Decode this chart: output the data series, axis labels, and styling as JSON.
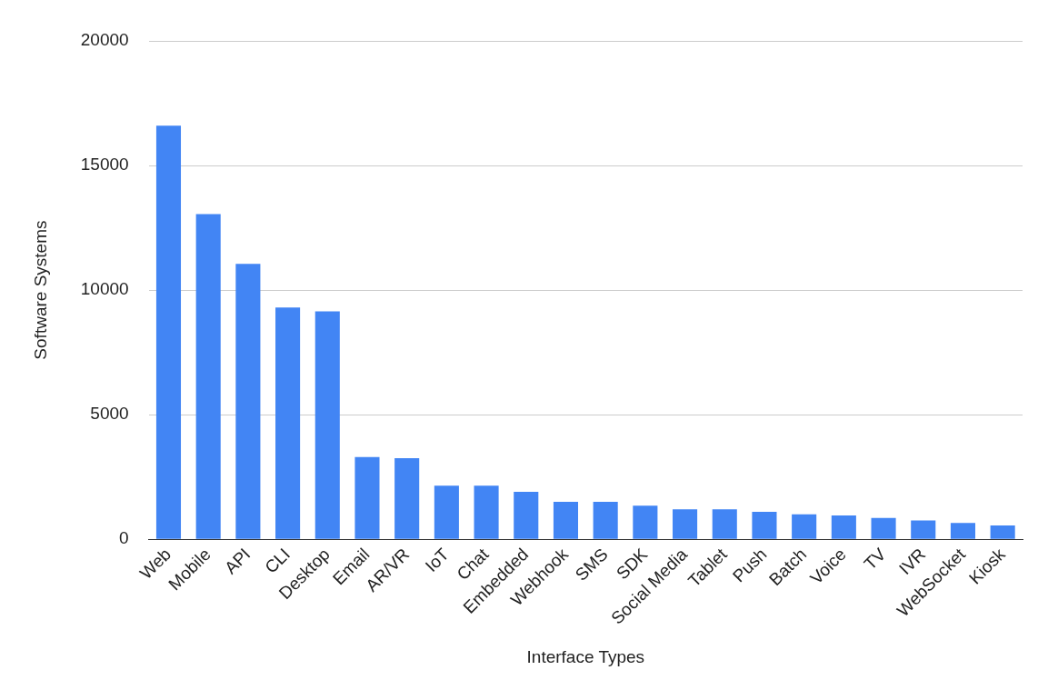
{
  "chart_data": {
    "type": "bar",
    "xlabel": "Interface Types",
    "ylabel": "Software Systems",
    "categories": [
      "Web",
      "Mobile",
      "API",
      "CLI",
      "Desktop",
      "Email",
      "AR/VR",
      "IoT",
      "Chat",
      "Embedded",
      "Webhook",
      "SMS",
      "SDK",
      "Social Media",
      "Tablet",
      "Push",
      "Batch",
      "Voice",
      "TV",
      "IVR",
      "WebSocket",
      "Kiosk"
    ],
    "values": [
      16600,
      13050,
      11050,
      9300,
      9150,
      3300,
      3250,
      2150,
      2150,
      1900,
      1500,
      1500,
      1350,
      1200,
      1200,
      1100,
      1000,
      950,
      850,
      750,
      650,
      550
    ],
    "color": "#4285f4",
    "ylim": [
      0,
      20000
    ],
    "yticks": [
      0,
      5000,
      10000,
      15000,
      20000
    ],
    "grid": "y",
    "legend": false
  }
}
